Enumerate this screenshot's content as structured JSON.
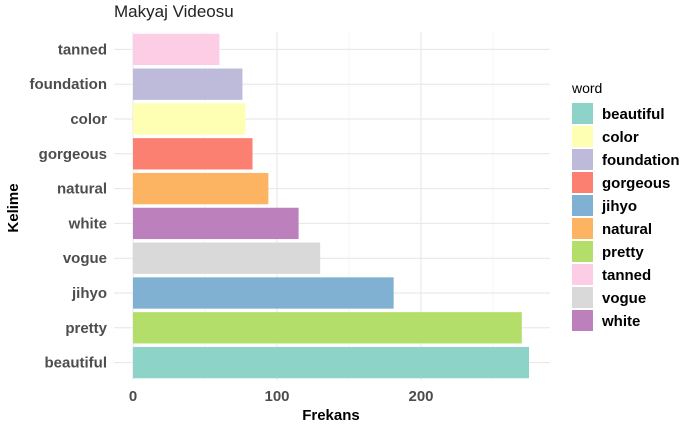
{
  "chart_data": {
    "type": "bar",
    "orientation": "horizontal",
    "title": "Makyaj Videosu",
    "xlabel": "Frekans",
    "ylabel": "Kelime",
    "xlim": [
      0,
      290
    ],
    "x_ticks": [
      0,
      100,
      200
    ],
    "categories": [
      "beautiful",
      "pretty",
      "jihyo",
      "vogue",
      "white",
      "natural",
      "gorgeous",
      "color",
      "foundation",
      "tanned"
    ],
    "values": [
      275,
      270,
      181,
      130,
      115,
      94,
      83,
      78,
      76,
      60
    ],
    "colors": {
      "beautiful": "#8dd3c7",
      "color": "#ffffb3",
      "foundation": "#bebada",
      "gorgeous": "#fb8072",
      "jihyo": "#80b1d3",
      "natural": "#fdb462",
      "pretty": "#b3de69",
      "tanned": "#fccde5",
      "vogue": "#d9d9d9",
      "white": "#bc80bd"
    },
    "legend": {
      "title": "word",
      "position": "right",
      "entries": [
        "beautiful",
        "color",
        "foundation",
        "gorgeous",
        "jihyo",
        "natural",
        "pretty",
        "tanned",
        "vogue",
        "white"
      ]
    },
    "grid": true
  }
}
